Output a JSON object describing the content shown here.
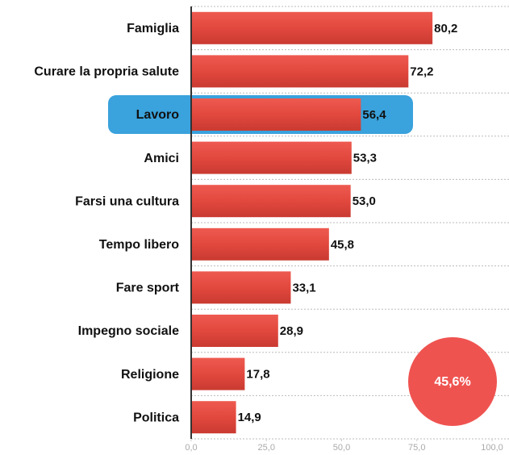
{
  "chart_data": {
    "type": "bar",
    "orientation": "horizontal",
    "categories": [
      "Famiglia",
      "Curare la propria salute",
      "Lavoro",
      "Amici",
      "Farsi una cultura",
      "Tempo libero",
      "Fare sport",
      "Impegno sociale",
      "Religione",
      "Politica"
    ],
    "values": [
      80.2,
      72.2,
      56.4,
      53.3,
      53.0,
      45.8,
      33.1,
      28.9,
      17.8,
      14.9
    ],
    "value_labels": [
      "80,2",
      "72,2",
      "56,4",
      "53,3",
      "53,0",
      "45,8",
      "33,1",
      "28,9",
      "17,8",
      "14,9"
    ],
    "color": "#e2483e",
    "highlight": 2,
    "highlight_color": "#3aa2dc",
    "xlim": [
      0,
      100
    ],
    "xticks": [
      {
        "value": 0,
        "label": "0,0"
      },
      {
        "value": 25,
        "label": "25,0"
      },
      {
        "value": 50,
        "label": "50,0"
      },
      {
        "value": 75,
        "label": "75,0"
      },
      {
        "value": 100,
        "label": "100,0"
      }
    ],
    "annotation": "45,6%",
    "annotation_color": "#ef5350"
  }
}
